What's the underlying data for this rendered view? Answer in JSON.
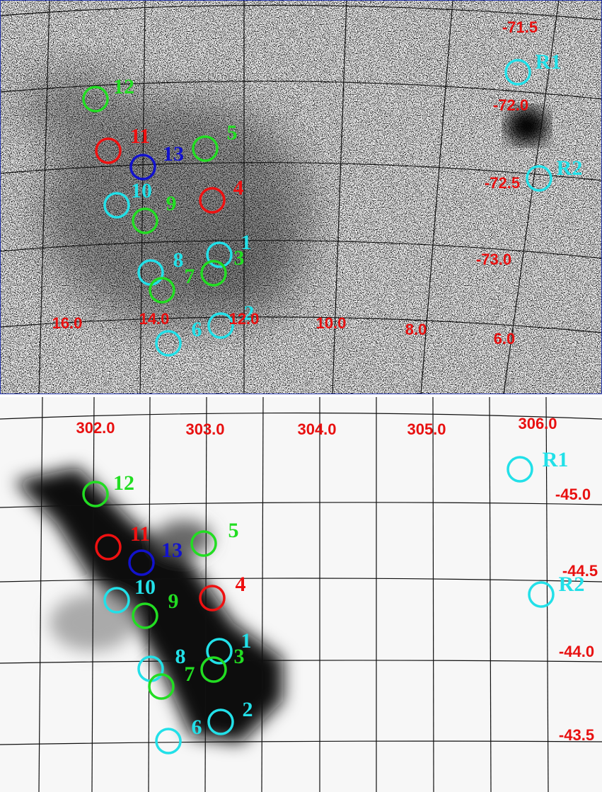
{
  "top": {
    "axis_labels": [
      "-71.5",
      "-72.0",
      "-72.5",
      "-73.0",
      "16.0",
      "14.0",
      "12.0",
      "10.0",
      "8.0",
      "6.0"
    ],
    "regions": [
      "12",
      "11",
      "13",
      "5",
      "10",
      "9",
      "4",
      "1",
      "3",
      "8",
      "7",
      "2",
      "6",
      "R1",
      "R2"
    ]
  },
  "bottom": {
    "axis_labels": [
      "302.0",
      "303.0",
      "304.0",
      "305.0",
      "306.0",
      "-45.0",
      "-44.5",
      "-44.0",
      "-43.5"
    ],
    "regions": [
      "12",
      "11",
      "13",
      "5",
      "10",
      "9",
      "4",
      "1",
      "3",
      "8",
      "7",
      "2",
      "6",
      "R1",
      "R2"
    ]
  }
}
